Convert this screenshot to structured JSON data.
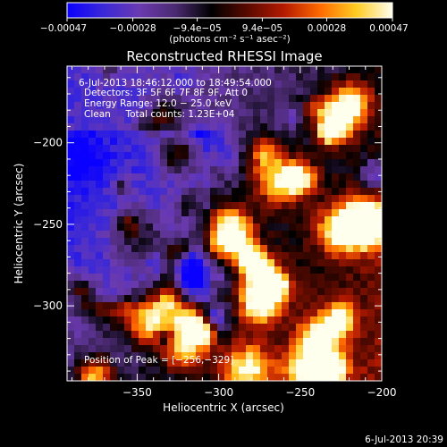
{
  "chart_data": {
    "type": "heatmap",
    "title": "Reconstructed RHESSI Image",
    "xlabel": "Heliocentric X (arcsec)",
    "ylabel": "Heliocentric Y (arcsec)",
    "xlim": [
      -393,
      -200
    ],
    "ylim": [
      -346,
      -153
    ],
    "x_ticks": [
      -350,
      -300,
      -250,
      -200
    ],
    "x_tick_labels": [
      "−350",
      "−300",
      "−250",
      "−200"
    ],
    "y_ticks": [
      -200,
      -250,
      -300
    ],
    "y_tick_labels": [
      "−200",
      "−250",
      "−300"
    ],
    "colorbar": {
      "range": [
        -0.00047,
        0.00047
      ],
      "ticks": [
        -0.00047,
        -0.00028,
        -9.4e-05,
        9.4e-05,
        0.00028,
        0.00047
      ],
      "tick_labels": [
        "−0.00047",
        "−0.00028",
        "−9.4e−05",
        "9.4e−05",
        "0.00028",
        "0.00047"
      ],
      "units": "(photons cm⁻² s⁻¹ asec⁻²)",
      "colors": [
        "#0a00ff",
        "#3a28d8",
        "#6a3ab0",
        "#4a2a70",
        "#000000",
        "#5a0a00",
        "#b41a00",
        "#ff6a00",
        "#ffcc22",
        "#ffffee"
      ]
    },
    "annotations": [
      "6-Jul-2013 18:46:12.000 to 18:49:54.000",
      "Detectors: 3F 5F 6F 7F 8F 9F, Att 0",
      "Energy Range: 12.0 − 25.0 keV",
      "Clean     Total counts: 1.23E+04",
      "Position of Peak = [−256,−329]"
    ],
    "grid": false
  },
  "footer": {
    "timestamp": "6-Jul-2013 20:39"
  }
}
